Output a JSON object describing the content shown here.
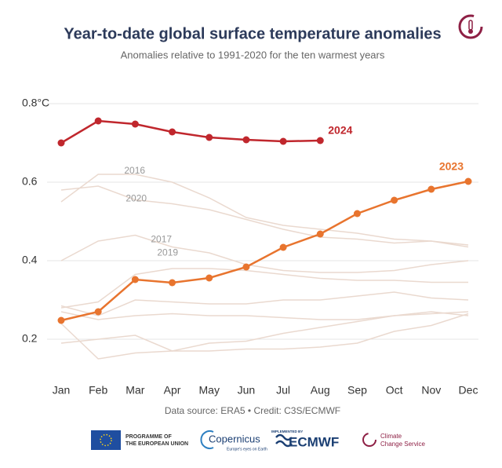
{
  "chart_data": {
    "type": "line",
    "title": "Year-to-date global surface temperature anomalies",
    "subtitle": "Anomalies relative to 1991-2020 for the ten warmest years",
    "source": "Data source: ERA5 • Credit: C3S/ECMWF",
    "categories": [
      "Jan",
      "Feb",
      "Mar",
      "Apr",
      "May",
      "Jun",
      "Jul",
      "Aug",
      "Sep",
      "Oct",
      "Nov",
      "Dec"
    ],
    "ylim": [
      0.12,
      0.84
    ],
    "yticks": [
      0.2,
      0.4,
      0.6,
      {
        "value": 0.8,
        "label": "0.8°C"
      }
    ],
    "grid": true,
    "series": [
      {
        "color": "#ead9cf",
        "values": [
          0.285,
          0.26,
          0.3,
          0.295,
          0.29,
          0.29,
          0.3,
          0.3,
          0.31,
          0.32,
          0.305,
          0.3
        ]
      },
      {
        "color": "#ead9cf",
        "values": [
          0.27,
          0.25,
          0.26,
          0.265,
          0.26,
          0.26,
          0.255,
          0.25,
          0.25,
          0.26,
          0.265,
          0.27
        ]
      },
      {
        "color": "#ead9cf",
        "values": [
          0.24,
          0.15,
          0.165,
          0.17,
          0.17,
          0.175,
          0.175,
          0.18,
          0.19,
          0.22,
          0.235,
          0.265
        ]
      },
      {
        "color": "#ead9cf",
        "values": [
          0.19,
          0.2,
          0.21,
          0.17,
          0.19,
          0.195,
          0.215,
          0.23,
          0.245,
          0.26,
          0.27,
          0.26
        ]
      },
      {
        "name": "2016",
        "color": "#ead9cf",
        "values": [
          0.55,
          0.62,
          0.62,
          0.6,
          0.56,
          0.51,
          0.49,
          0.48,
          0.47,
          0.455,
          0.45,
          0.44
        ]
      },
      {
        "name": "2020",
        "color": "#ead9cf",
        "values": [
          0.58,
          0.59,
          0.555,
          0.545,
          0.53,
          0.505,
          0.48,
          0.46,
          0.455,
          0.445,
          0.45,
          0.435
        ]
      },
      {
        "name": "2017",
        "color": "#ead9cf",
        "values": [
          0.4,
          0.45,
          0.465,
          0.435,
          0.42,
          0.39,
          0.375,
          0.37,
          0.37,
          0.375,
          0.39,
          0.4
        ]
      },
      {
        "name": "2019",
        "color": "#ead9cf",
        "values": [
          0.28,
          0.295,
          0.365,
          0.38,
          0.38,
          0.375,
          0.365,
          0.355,
          0.35,
          0.35,
          0.345,
          0.345
        ]
      },
      {
        "name": "2023",
        "color": "#e8742e",
        "markers": true,
        "values": [
          0.248,
          0.27,
          0.352,
          0.344,
          0.356,
          0.384,
          0.434,
          0.468,
          0.52,
          0.554,
          0.582,
          0.602
        ]
      },
      {
        "name": "2024",
        "color": "#c0272d",
        "markers": true,
        "values": [
          0.7,
          0.756,
          0.748,
          0.728,
          0.714,
          0.708,
          0.704,
          0.706,
          null,
          null,
          null,
          null
        ]
      }
    ]
  },
  "logos": {
    "eu": "PROGRAMME OF",
    "eu2": "THE EUROPEAN UNION",
    "copernicus": "Copernicus",
    "copernicus_tag": "Europe's eyes on Earth",
    "implemented": "IMPLEMENTED BY",
    "ecmwf": "ECMWF",
    "c3s": "Climate",
    "c3s2": "Change Service"
  }
}
